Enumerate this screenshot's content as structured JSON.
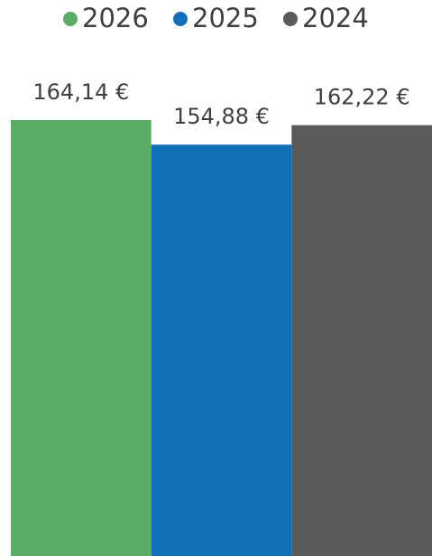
{
  "chart_data": {
    "type": "bar",
    "categories": [
      null
    ],
    "series": [
      {
        "name": "2026",
        "color": "#5aab64",
        "values": [
          164.14
        ],
        "value_labels": [
          "164,14 €"
        ]
      },
      {
        "name": "2025",
        "color": "#1170b8",
        "values": [
          154.88
        ],
        "value_labels": [
          "154,88 €"
        ]
      },
      {
        "name": "2024",
        "color": "#5a5a5a",
        "values": [
          162.22
        ],
        "value_labels": [
          "162,22 €"
        ]
      }
    ],
    "legend": "top"
  }
}
